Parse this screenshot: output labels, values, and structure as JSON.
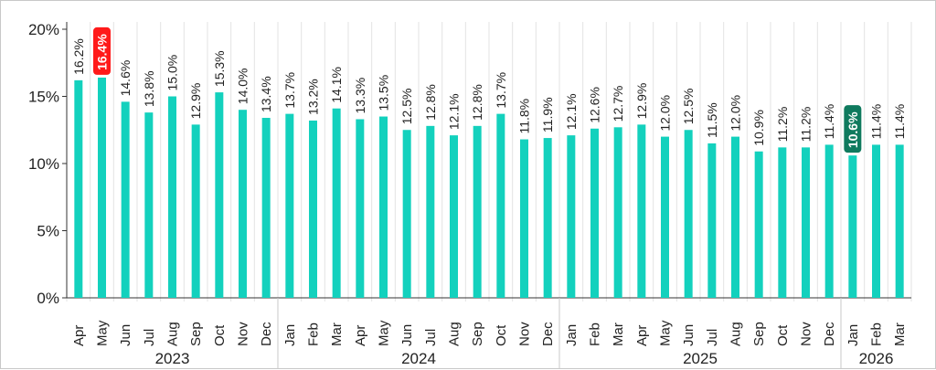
{
  "chart_data": {
    "type": "bar",
    "title": "",
    "xlabel": "",
    "ylabel": "",
    "ylim": [
      0,
      20
    ],
    "yticks": [
      "0%",
      "5%",
      "10%",
      "15%",
      "20%"
    ],
    "ytick_values": [
      0,
      5,
      10,
      15,
      20
    ],
    "grid": "vertical",
    "bar_color": "#13d1bd",
    "categories": [
      "Apr",
      "May",
      "Jun",
      "Jul",
      "Aug",
      "Sep",
      "Oct",
      "Nov",
      "Dec",
      "Jan",
      "Feb",
      "Mar",
      "Apr",
      "May",
      "Jun",
      "Jul",
      "Aug",
      "Sep",
      "Oct",
      "Nov",
      "Dec",
      "Jan",
      "Feb",
      "Mar",
      "Apr",
      "May",
      "Jun",
      "Jul",
      "Aug",
      "Sep",
      "Oct",
      "Nov",
      "Dec",
      "Jan",
      "Feb",
      "Mar"
    ],
    "values": [
      16.2,
      16.4,
      14.6,
      13.8,
      15.0,
      12.9,
      15.3,
      14.0,
      13.4,
      13.7,
      13.2,
      14.1,
      13.3,
      13.5,
      12.5,
      12.8,
      12.1,
      12.8,
      13.7,
      11.8,
      11.9,
      12.1,
      12.6,
      12.7,
      12.9,
      12.0,
      12.5,
      11.5,
      12.0,
      10.9,
      11.2,
      11.2,
      11.4,
      10.6,
      11.4,
      11.4
    ],
    "labels": [
      "16.2%",
      "16.4%",
      "14.6%",
      "13.8%",
      "15.0%",
      "12.9%",
      "15.3%",
      "14.0%",
      "13.4%",
      "13.7%",
      "13.2%",
      "14.1%",
      "13.3%",
      "13.5%",
      "12.5%",
      "12.8%",
      "12.1%",
      "12.8%",
      "13.7%",
      "11.8%",
      "11.9%",
      "12.1%",
      "12.6%",
      "12.7%",
      "12.9%",
      "12.0%",
      "12.5%",
      "11.5%",
      "12.0%",
      "10.9%",
      "11.2%",
      "11.2%",
      "11.4%",
      "10.6%",
      "11.4%",
      "11.4%"
    ],
    "years": [
      {
        "label": "2023",
        "start": 0,
        "count": 9
      },
      {
        "label": "2024",
        "start": 9,
        "count": 12
      },
      {
        "label": "2025",
        "start": 21,
        "count": 12
      },
      {
        "label": "2026",
        "start": 33,
        "count": 3
      }
    ],
    "highlights": [
      {
        "index": 1,
        "color": "#ff1a1a"
      },
      {
        "index": 33,
        "color": "#0f7a5e"
      }
    ]
  }
}
